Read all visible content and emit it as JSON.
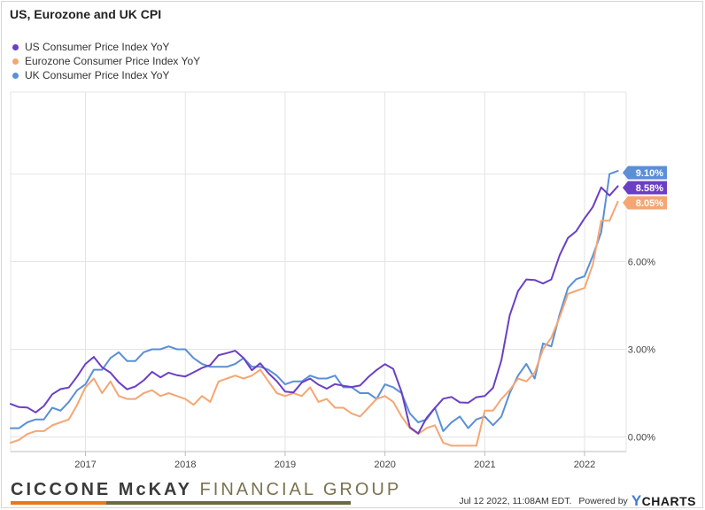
{
  "title": "US, Eurozone and UK CPI",
  "legend": [
    {
      "label": "US Consumer Price Index YoY",
      "color": "#6b3fc4"
    },
    {
      "label": "Eurozone Consumer Price Index YoY",
      "color": "#f5a673"
    },
    {
      "label": "UK Consumer Price Index YoY",
      "color": "#5b8fd6"
    }
  ],
  "chart_data": {
    "type": "line",
    "x_ticks": [
      "2017",
      "2018",
      "2019",
      "2020",
      "2021",
      "2022"
    ],
    "y_ticks": [
      "0.00%",
      "3.00%",
      "6.00%",
      "9.00%"
    ],
    "y_tick_values": [
      0,
      3,
      6,
      9
    ],
    "xlim": [
      "2016-04",
      "2022-06"
    ],
    "ylim": [
      -0.5,
      11.8
    ],
    "grid": true,
    "legend_position": "top-left",
    "series": [
      {
        "name": "US Consumer Price Index YoY",
        "color": "#6b3fc4",
        "end_label": "8.58%",
        "x": [
          "2016-04",
          "2016-05",
          "2016-06",
          "2016-07",
          "2016-08",
          "2016-09",
          "2016-10",
          "2016-11",
          "2016-12",
          "2017-01",
          "2017-02",
          "2017-03",
          "2017-04",
          "2017-05",
          "2017-06",
          "2017-07",
          "2017-08",
          "2017-09",
          "2017-10",
          "2017-11",
          "2017-12",
          "2018-01",
          "2018-02",
          "2018-03",
          "2018-04",
          "2018-05",
          "2018-06",
          "2018-07",
          "2018-08",
          "2018-09",
          "2018-10",
          "2018-11",
          "2018-12",
          "2019-01",
          "2019-02",
          "2019-03",
          "2019-04",
          "2019-05",
          "2019-06",
          "2019-07",
          "2019-08",
          "2019-09",
          "2019-10",
          "2019-11",
          "2019-12",
          "2020-01",
          "2020-02",
          "2020-03",
          "2020-04",
          "2020-05",
          "2020-06",
          "2020-07",
          "2020-08",
          "2020-09",
          "2020-10",
          "2020-11",
          "2020-12",
          "2021-01",
          "2021-02",
          "2021-03",
          "2021-04",
          "2021-05",
          "2021-06",
          "2021-07",
          "2021-08",
          "2021-09",
          "2021-10",
          "2021-11",
          "2021-12",
          "2022-01",
          "2022-02",
          "2022-03",
          "2022-04",
          "2022-05"
        ],
        "values": [
          1.13,
          1.02,
          1.01,
          0.84,
          1.06,
          1.46,
          1.64,
          1.69,
          2.07,
          2.5,
          2.74,
          2.38,
          2.2,
          1.87,
          1.63,
          1.73,
          1.94,
          2.23,
          2.04,
          2.2,
          2.11,
          2.07,
          2.21,
          2.36,
          2.46,
          2.8,
          2.87,
          2.95,
          2.7,
          2.28,
          2.52,
          2.18,
          1.91,
          1.55,
          1.52,
          1.86,
          2.0,
          1.79,
          1.65,
          1.81,
          1.75,
          1.71,
          1.76,
          2.05,
          2.29,
          2.49,
          2.33,
          1.54,
          0.33,
          0.12,
          0.65,
          0.99,
          1.31,
          1.37,
          1.18,
          1.17,
          1.36,
          1.4,
          1.68,
          2.62,
          4.16,
          4.99,
          5.39,
          5.37,
          5.25,
          5.39,
          6.22,
          6.81,
          7.04,
          7.48,
          7.87,
          8.54,
          8.26,
          8.58
        ]
      },
      {
        "name": "Eurozone Consumer Price Index YoY",
        "color": "#f5a673",
        "end_label": "8.05%",
        "x": [
          "2016-04",
          "2016-05",
          "2016-06",
          "2016-07",
          "2016-08",
          "2016-09",
          "2016-10",
          "2016-11",
          "2016-12",
          "2017-01",
          "2017-02",
          "2017-03",
          "2017-04",
          "2017-05",
          "2017-06",
          "2017-07",
          "2017-08",
          "2017-09",
          "2017-10",
          "2017-11",
          "2017-12",
          "2018-01",
          "2018-02",
          "2018-03",
          "2018-04",
          "2018-05",
          "2018-06",
          "2018-07",
          "2018-08",
          "2018-09",
          "2018-10",
          "2018-11",
          "2018-12",
          "2019-01",
          "2019-02",
          "2019-03",
          "2019-04",
          "2019-05",
          "2019-06",
          "2019-07",
          "2019-08",
          "2019-09",
          "2019-10",
          "2019-11",
          "2019-12",
          "2020-01",
          "2020-02",
          "2020-03",
          "2020-04",
          "2020-05",
          "2020-06",
          "2020-07",
          "2020-08",
          "2020-09",
          "2020-10",
          "2020-11",
          "2020-12",
          "2021-01",
          "2021-02",
          "2021-03",
          "2021-04",
          "2021-05",
          "2021-06",
          "2021-07",
          "2021-08",
          "2021-09",
          "2021-10",
          "2021-11",
          "2021-12",
          "2022-01",
          "2022-02",
          "2022-03",
          "2022-04",
          "2022-05"
        ],
        "values": [
          -0.2,
          -0.1,
          0.1,
          0.2,
          0.2,
          0.4,
          0.5,
          0.6,
          1.1,
          1.7,
          2.0,
          1.5,
          1.9,
          1.4,
          1.3,
          1.3,
          1.5,
          1.6,
          1.4,
          1.5,
          1.4,
          1.3,
          1.1,
          1.4,
          1.2,
          1.9,
          2.0,
          2.1,
          2.0,
          2.1,
          2.3,
          1.9,
          1.5,
          1.4,
          1.5,
          1.4,
          1.7,
          1.2,
          1.3,
          1.0,
          1.0,
          0.8,
          0.7,
          1.0,
          1.3,
          1.4,
          1.2,
          0.7,
          0.3,
          0.1,
          0.3,
          0.4,
          -0.2,
          -0.3,
          -0.3,
          -0.3,
          -0.3,
          0.9,
          0.9,
          1.3,
          1.6,
          2.0,
          1.9,
          2.2,
          3.0,
          3.4,
          4.1,
          4.9,
          5.0,
          5.1,
          5.9,
          7.4,
          7.4,
          8.05
        ]
      },
      {
        "name": "UK Consumer Price Index YoY",
        "color": "#5b8fd6",
        "end_label": "9.10%",
        "x": [
          "2016-04",
          "2016-05",
          "2016-06",
          "2016-07",
          "2016-08",
          "2016-09",
          "2016-10",
          "2016-11",
          "2016-12",
          "2017-01",
          "2017-02",
          "2017-03",
          "2017-04",
          "2017-05",
          "2017-06",
          "2017-07",
          "2017-08",
          "2017-09",
          "2017-10",
          "2017-11",
          "2017-12",
          "2018-01",
          "2018-02",
          "2018-03",
          "2018-04",
          "2018-05",
          "2018-06",
          "2018-07",
          "2018-08",
          "2018-09",
          "2018-10",
          "2018-11",
          "2018-12",
          "2019-01",
          "2019-02",
          "2019-03",
          "2019-04",
          "2019-05",
          "2019-06",
          "2019-07",
          "2019-08",
          "2019-09",
          "2019-10",
          "2019-11",
          "2019-12",
          "2020-01",
          "2020-02",
          "2020-03",
          "2020-04",
          "2020-05",
          "2020-06",
          "2020-07",
          "2020-08",
          "2020-09",
          "2020-10",
          "2020-11",
          "2020-12",
          "2021-01",
          "2021-02",
          "2021-03",
          "2021-04",
          "2021-05",
          "2021-06",
          "2021-07",
          "2021-08",
          "2021-09",
          "2021-10",
          "2021-11",
          "2021-12",
          "2022-01",
          "2022-02",
          "2022-03",
          "2022-04",
          "2022-05"
        ],
        "values": [
          0.3,
          0.3,
          0.5,
          0.6,
          0.6,
          1.0,
          0.9,
          1.2,
          1.6,
          1.8,
          2.3,
          2.3,
          2.7,
          2.9,
          2.6,
          2.6,
          2.9,
          3.0,
          3.0,
          3.1,
          3.0,
          3.0,
          2.7,
          2.5,
          2.4,
          2.4,
          2.4,
          2.5,
          2.7,
          2.4,
          2.4,
          2.3,
          2.1,
          1.8,
          1.9,
          1.9,
          2.1,
          2.0,
          2.0,
          2.1,
          1.7,
          1.7,
          1.5,
          1.5,
          1.3,
          1.8,
          1.7,
          1.5,
          0.8,
          0.5,
          0.6,
          1.0,
          0.2,
          0.5,
          0.7,
          0.3,
          0.6,
          0.7,
          0.4,
          0.7,
          1.5,
          2.1,
          2.5,
          2.0,
          3.2,
          3.1,
          4.2,
          5.1,
          5.4,
          5.5,
          6.2,
          7.0,
          9.0,
          9.1
        ]
      }
    ]
  },
  "footer": {
    "logo_part1": "CICCONE ",
    "logo_part2": "McKAY",
    "logo_part3": " FINANCIAL GROUP",
    "timestamp": "Jul 12 2022, 11:08AM EDT.",
    "powered_by": "Powered by",
    "brand": "CHARTS",
    "brand_y": "Y"
  }
}
